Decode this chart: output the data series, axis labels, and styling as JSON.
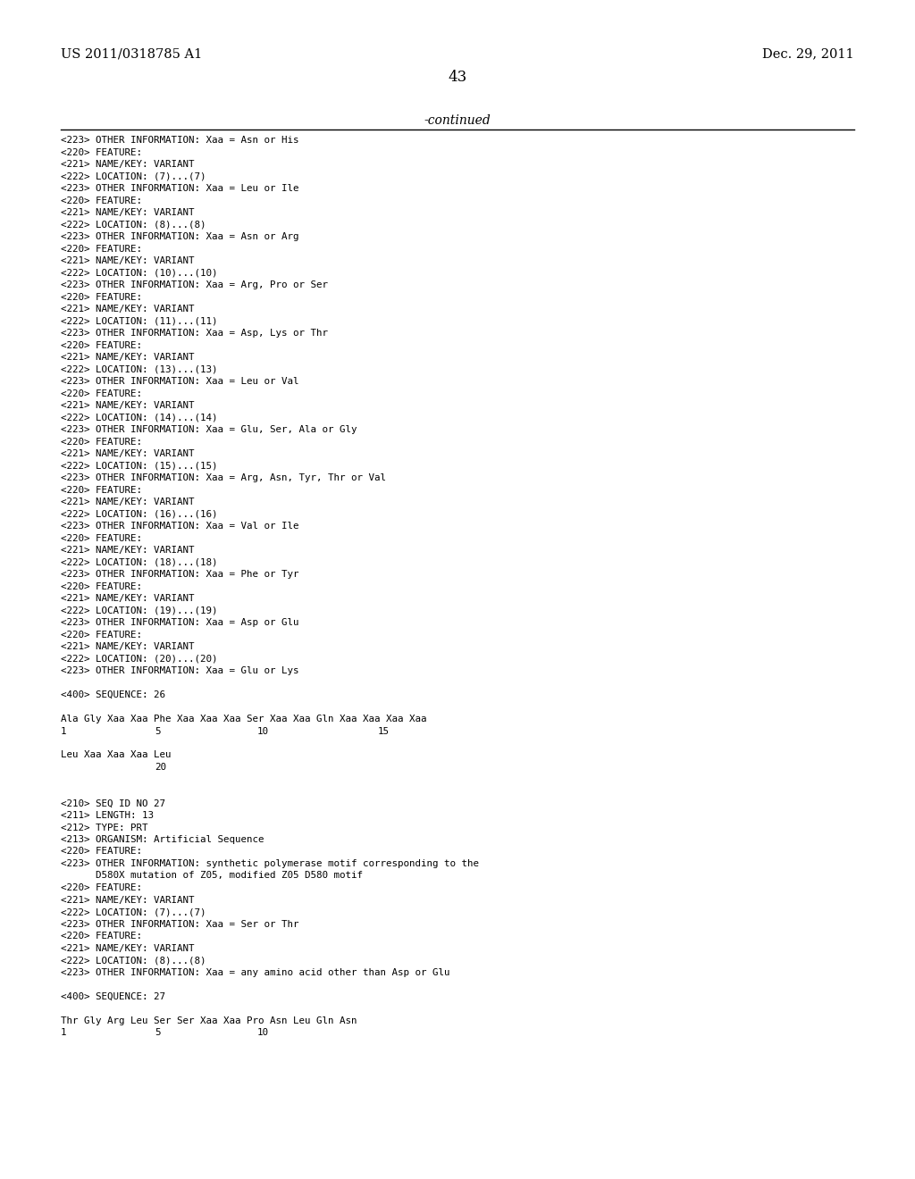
{
  "header_left": "US 2011/0318785 A1",
  "header_right": "Dec. 29, 2011",
  "page_number": "43",
  "continued_text": "-continued",
  "background_color": "#ffffff",
  "text_color": "#000000",
  "body_lines": [
    "<223> OTHER INFORMATION: Xaa = Asn or His",
    "<220> FEATURE:",
    "<221> NAME/KEY: VARIANT",
    "<222> LOCATION: (7)...(7)",
    "<223> OTHER INFORMATION: Xaa = Leu or Ile",
    "<220> FEATURE:",
    "<221> NAME/KEY: VARIANT",
    "<222> LOCATION: (8)...(8)",
    "<223> OTHER INFORMATION: Xaa = Asn or Arg",
    "<220> FEATURE:",
    "<221> NAME/KEY: VARIANT",
    "<222> LOCATION: (10)...(10)",
    "<223> OTHER INFORMATION: Xaa = Arg, Pro or Ser",
    "<220> FEATURE:",
    "<221> NAME/KEY: VARIANT",
    "<222> LOCATION: (11)...(11)",
    "<223> OTHER INFORMATION: Xaa = Asp, Lys or Thr",
    "<220> FEATURE:",
    "<221> NAME/KEY: VARIANT",
    "<222> LOCATION: (13)...(13)",
    "<223> OTHER INFORMATION: Xaa = Leu or Val",
    "<220> FEATURE:",
    "<221> NAME/KEY: VARIANT",
    "<222> LOCATION: (14)...(14)",
    "<223> OTHER INFORMATION: Xaa = Glu, Ser, Ala or Gly",
    "<220> FEATURE:",
    "<221> NAME/KEY: VARIANT",
    "<222> LOCATION: (15)...(15)",
    "<223> OTHER INFORMATION: Xaa = Arg, Asn, Tyr, Thr or Val",
    "<220> FEATURE:",
    "<221> NAME/KEY: VARIANT",
    "<222> LOCATION: (16)...(16)",
    "<223> OTHER INFORMATION: Xaa = Val or Ile",
    "<220> FEATURE:",
    "<221> NAME/KEY: VARIANT",
    "<222> LOCATION: (18)...(18)",
    "<223> OTHER INFORMATION: Xaa = Phe or Tyr",
    "<220> FEATURE:",
    "<221> NAME/KEY: VARIANT",
    "<222> LOCATION: (19)...(19)",
    "<223> OTHER INFORMATION: Xaa = Asp or Glu",
    "<220> FEATURE:",
    "<221> NAME/KEY: VARIANT",
    "<222> LOCATION: (20)...(20)",
    "<223> OTHER INFORMATION: Xaa = Glu or Lys",
    "BLANK",
    "<400> SEQUENCE: 26",
    "BLANK",
    "Ala Gly Xaa Xaa Phe Xaa Xaa Xaa Ser Xaa Xaa Gln Xaa Xaa Xaa Xaa",
    "SEQ_NUM_LINE_1",
    "BLANK",
    "Leu Xaa Xaa Xaa Leu",
    "SEQ_NUM_LINE_2",
    "BLANK",
    "BLANK",
    "<210> SEQ ID NO 27",
    "<211> LENGTH: 13",
    "<212> TYPE: PRT",
    "<213> ORGANISM: Artificial Sequence",
    "<220> FEATURE:",
    "<223> OTHER INFORMATION: synthetic polymerase motif corresponding to the",
    "      D580X mutation of Z05, modified Z05 D580 motif",
    "<220> FEATURE:",
    "<221> NAME/KEY: VARIANT",
    "<222> LOCATION: (7)...(7)",
    "<223> OTHER INFORMATION: Xaa = Ser or Thr",
    "<220> FEATURE:",
    "<221> NAME/KEY: VARIANT",
    "<222> LOCATION: (8)...(8)",
    "<223> OTHER INFORMATION: Xaa = any amino acid other than Asp or Glu",
    "BLANK",
    "<400> SEQUENCE: 27",
    "BLANK",
    "Thr Gly Arg Leu Ser Ser Xaa Xaa Pro Asn Leu Gln Asn",
    "SEQ_NUM_LINE_3"
  ],
  "seq_num_1": {
    "1": 0,
    "5": 105,
    "10": 220,
    "15": 355
  },
  "seq_num_2": {
    "20": 105
  },
  "seq_num_3": {
    "1": 0,
    "5": 105,
    "10": 220
  }
}
